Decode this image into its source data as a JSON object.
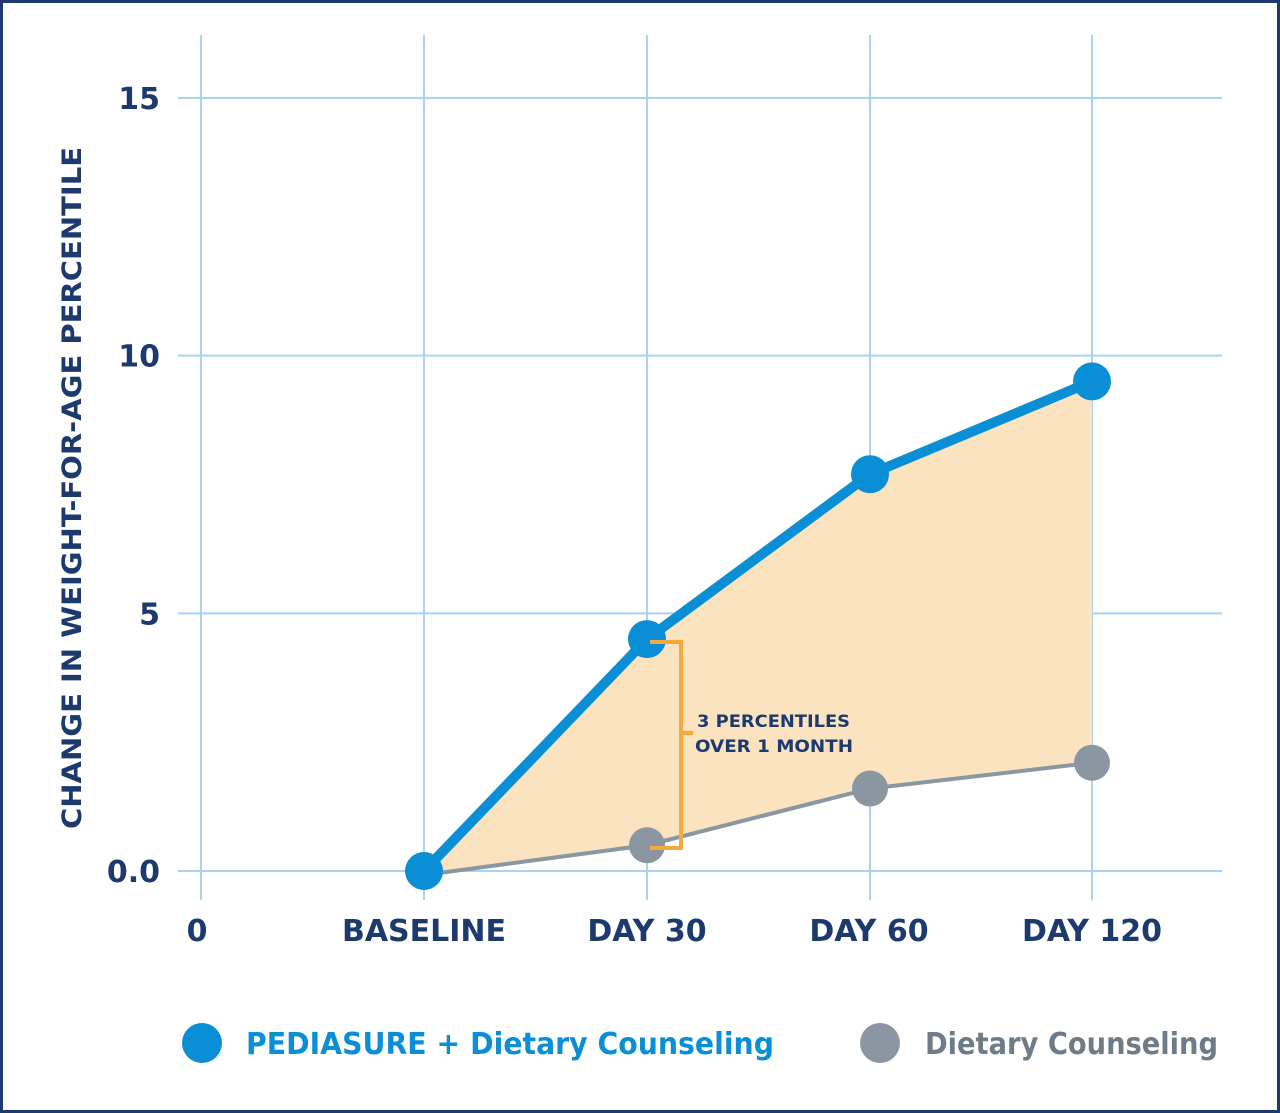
{
  "colors": {
    "border": "#1c3a6e",
    "grid": "#a8d4ee",
    "series_blue": "#0a8fd6",
    "series_gray": "#8a96a1",
    "fill_area": "#fbe3c0",
    "bracket": "#f5a93a",
    "text": "#1c3a6e"
  },
  "chart_data": {
    "type": "line",
    "x_tick_labels": [
      "0",
      "BASELINE",
      "DAY 30",
      "DAY 60",
      "DAY 120"
    ],
    "categories": [
      "BASELINE",
      "DAY 30",
      "DAY 60",
      "DAY 120"
    ],
    "y_tick_labels": [
      "15",
      "10",
      "5",
      "0.0"
    ],
    "ylabel": "CHANGE IN WEIGHT-FOR-AGE PERCENTILE",
    "xlabel": "",
    "ylim": [
      0,
      15
    ],
    "grid": true,
    "legend_position": "bottom",
    "series": [
      {
        "name": "PEDIASURE + Dietary Counseling",
        "values": [
          0.0,
          4.5,
          7.7,
          9.5
        ]
      },
      {
        "name": "Dietary Counseling",
        "values": [
          0.0,
          0.5,
          1.6,
          2.1
        ]
      }
    ],
    "annotation": {
      "line1": "3 PERCENTILES",
      "line2": "OVER 1 MONTH"
    }
  }
}
